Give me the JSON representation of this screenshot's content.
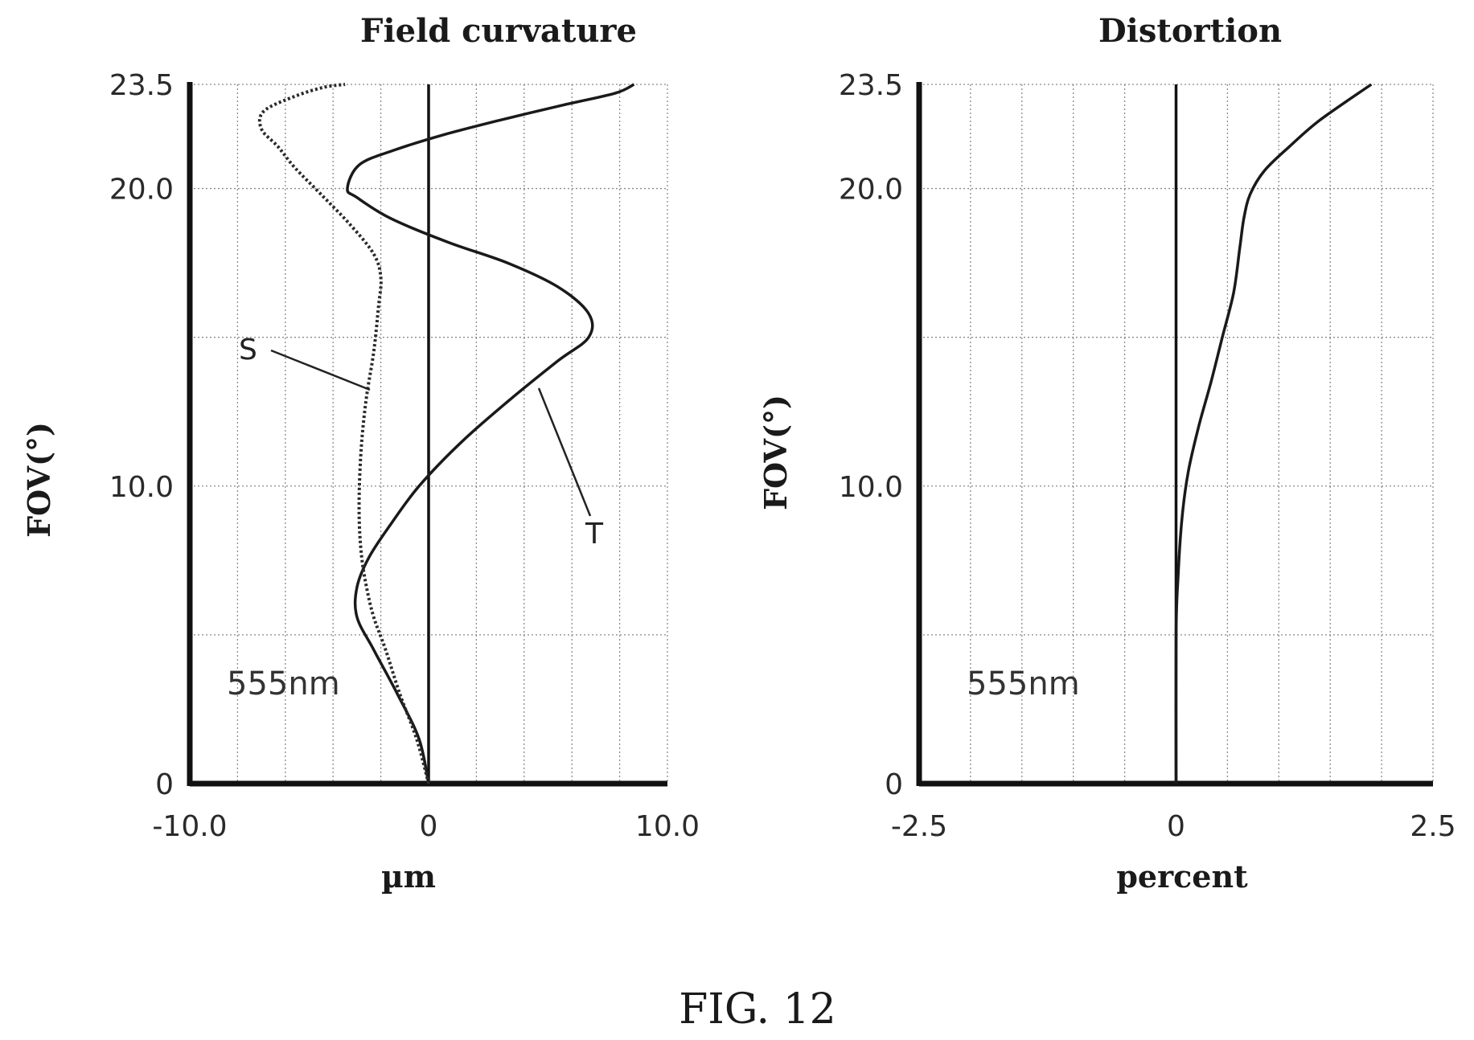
{
  "figure_caption": "FIG. 12",
  "colors": {
    "curve": "#1a1a1a",
    "grid": "#8a8a8a",
    "background": "#ffffff"
  },
  "chart_data": [
    {
      "type": "line",
      "title": "Field curvature",
      "xlabel": "µm",
      "ylabel": "FOV(°)",
      "xlim": [
        -10.0,
        10.0
      ],
      "ylim": [
        0,
        23.5
      ],
      "x_ticks": [
        "-10.0",
        "0",
        "10.0"
      ],
      "y_ticks": [
        "0",
        "10.0",
        "20.0",
        "23.5"
      ],
      "grid": true,
      "annotation": "555nm",
      "series": [
        {
          "name": "T",
          "style": "solid",
          "points": [
            [
              0,
              0
            ],
            [
              -0.4,
              1.5
            ],
            [
              -1.3,
              3.0
            ],
            [
              -2.3,
              4.5
            ],
            [
              -3.0,
              5.6
            ],
            [
              -3.0,
              6.6
            ],
            [
              -2.5,
              7.6
            ],
            [
              -1.6,
              8.7
            ],
            [
              -0.4,
              10.0
            ],
            [
              1.4,
              11.5
            ],
            [
              3.4,
              12.9
            ],
            [
              5.4,
              14.2
            ],
            [
              6.7,
              15.0
            ],
            [
              6.7,
              15.8
            ],
            [
              5.4,
              16.7
            ],
            [
              3.3,
              17.5
            ],
            [
              0.8,
              18.2
            ],
            [
              -1.6,
              19.0
            ],
            [
              -3.0,
              19.7
            ],
            [
              -3.4,
              20.0
            ],
            [
              -2.9,
              20.8
            ],
            [
              -1.4,
              21.3
            ],
            [
              0.6,
              21.8
            ],
            [
              3.0,
              22.3
            ],
            [
              5.6,
              22.8
            ],
            [
              7.8,
              23.2
            ],
            [
              8.6,
              23.5
            ]
          ]
        },
        {
          "name": "S",
          "style": "dotted",
          "points": [
            [
              0,
              0
            ],
            [
              -0.5,
              1.5
            ],
            [
              -1.2,
              3.0
            ],
            [
              -1.8,
              4.5
            ],
            [
              -2.3,
              5.6
            ],
            [
              -2.6,
              6.6
            ],
            [
              -2.8,
              7.6
            ],
            [
              -2.9,
              8.7
            ],
            [
              -2.9,
              10.0
            ],
            [
              -2.8,
              11.5
            ],
            [
              -2.6,
              13.0
            ],
            [
              -2.3,
              14.5
            ],
            [
              -2.1,
              16.0
            ],
            [
              -2.0,
              17.0
            ],
            [
              -2.3,
              17.8
            ],
            [
              -3.3,
              18.8
            ],
            [
              -4.5,
              19.8
            ],
            [
              -5.6,
              20.7
            ],
            [
              -6.3,
              21.4
            ],
            [
              -7.0,
              22.0
            ],
            [
              -6.9,
              22.6
            ],
            [
              -5.6,
              23.1
            ],
            [
              -4.4,
              23.4
            ],
            [
              -3.5,
              23.5
            ]
          ]
        }
      ]
    },
    {
      "type": "line",
      "title": "Distortion",
      "xlabel": "percent",
      "ylabel": "FOV(°)",
      "xlim": [
        -2.5,
        2.5
      ],
      "ylim": [
        0,
        23.5
      ],
      "x_ticks": [
        "-2.5",
        "0",
        "2.5"
      ],
      "y_ticks": [
        "0",
        "10.0",
        "20.0",
        "23.5"
      ],
      "grid": true,
      "annotation": "555nm",
      "series": [
        {
          "style": "solid",
          "points": [
            [
              0,
              0
            ],
            [
              0,
              5.0
            ],
            [
              0.02,
              7.0
            ],
            [
              0.06,
              9.0
            ],
            [
              0.12,
              10.5
            ],
            [
              0.22,
              12.0
            ],
            [
              0.34,
              13.5
            ],
            [
              0.45,
              15.0
            ],
            [
              0.56,
              16.5
            ],
            [
              0.62,
              18.0
            ],
            [
              0.66,
              19.0
            ],
            [
              0.72,
              19.8
            ],
            [
              0.86,
              20.6
            ],
            [
              1.1,
              21.4
            ],
            [
              1.4,
              22.3
            ],
            [
              1.9,
              23.5
            ]
          ]
        }
      ]
    }
  ]
}
